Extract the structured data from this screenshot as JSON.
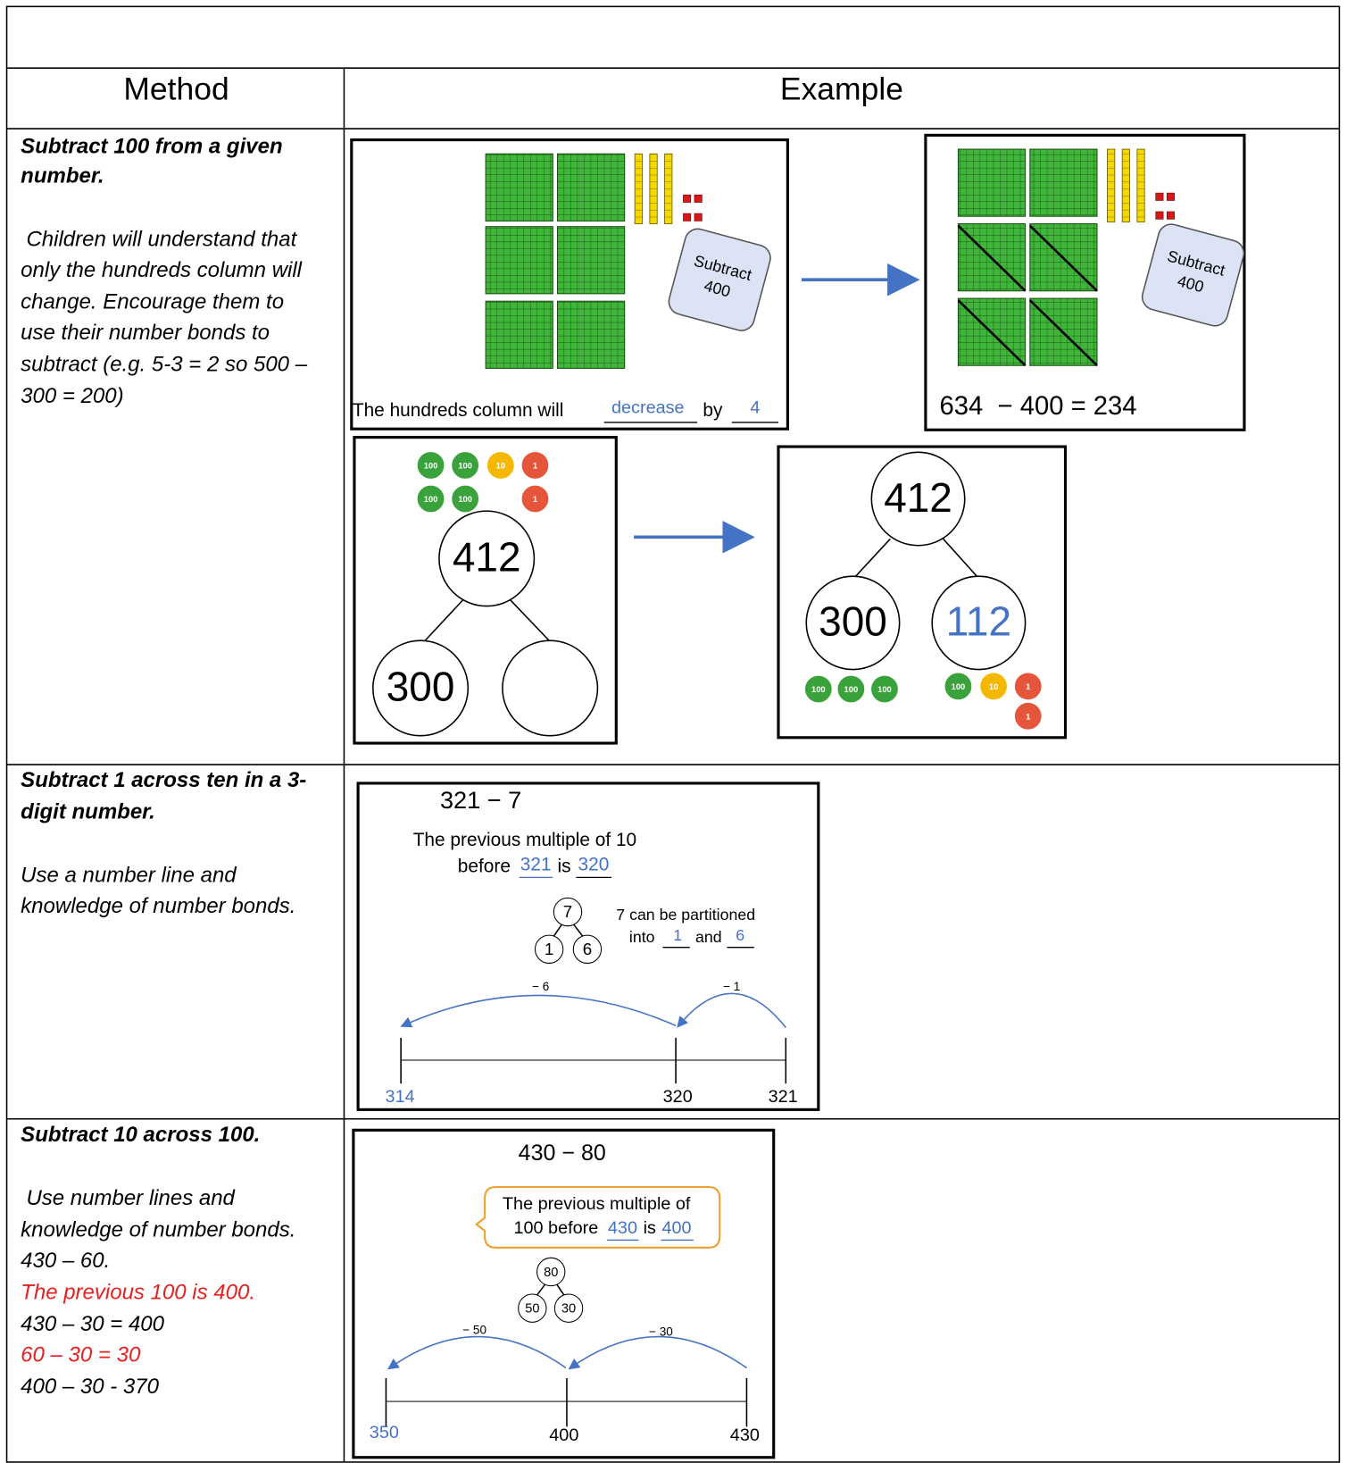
{
  "table": {
    "header": [
      "Method",
      "Example"
    ],
    "rows": [
      {
        "method": {
          "title": [
            "Subtract 100 from a given",
            "number."
          ],
          "body": [
            "Children will understand that",
            "only the hundreds column will",
            "change. Encourage them to",
            "use their number bonds to",
            "subtract (e.g. 5-3 = 2 so 500 –",
            "300 = 200)"
          ]
        },
        "example": {
          "base_ten_before": {
            "card": [
              "Subtract",
              "400"
            ],
            "sentence": [
              "The hundreds column will",
              "decrease",
              "by",
              "4"
            ]
          },
          "base_ten_after": {
            "card": [
              "Subtract",
              "400"
            ],
            "equation": "634  − 400 = 234"
          },
          "part_whole_before": {
            "counters": [
              "100",
              "100",
              "10",
              "1",
              "100",
              "100",
              "1"
            ],
            "whole": "412",
            "part": "300"
          },
          "part_whole_after": {
            "whole": "412",
            "parts": [
              "300",
              "112"
            ],
            "counters": [
              "100",
              "100",
              "100",
              "100",
              "10",
              "1",
              "1"
            ]
          }
        }
      },
      {
        "method": {
          "title": [
            "Subtract 1 across ten in a 3-",
            "digit number."
          ],
          "body": [
            "Use a number line and",
            "knowledge of number bonds."
          ]
        },
        "example": {
          "calculation": "321 − 7",
          "sentence": [
            "The previous multiple of 10",
            "before",
            "321",
            "is",
            "320"
          ],
          "bond": {
            "whole": "7",
            "parts": [
              "1",
              "6"
            ]
          },
          "partition": [
            "7 can be partitioned",
            "into",
            "1",
            "and",
            "6"
          ],
          "jumps": [
            "− 6",
            "− 1"
          ],
          "number_line": [
            "314",
            "320",
            "321"
          ]
        }
      },
      {
        "method": {
          "title": [
            "Subtract 10 across 100."
          ],
          "body": [
            "Use number lines and",
            "knowledge of number bonds.",
            "430 – 60.",
            "The previous 100 is 400.",
            "430 – 30 = 400",
            "60 – 30 = 30",
            "400 – 30 - 370"
          ]
        },
        "example": {
          "calculation": "430 − 80",
          "callout": [
            "The previous multiple of",
            "100 before",
            "430",
            "is",
            "400"
          ],
          "bond": {
            "whole": "80",
            "parts": [
              "50",
              "30"
            ]
          },
          "jumps": [
            "− 50",
            "− 30"
          ],
          "number_line": [
            "350",
            "400",
            "430"
          ]
        }
      }
    ]
  }
}
